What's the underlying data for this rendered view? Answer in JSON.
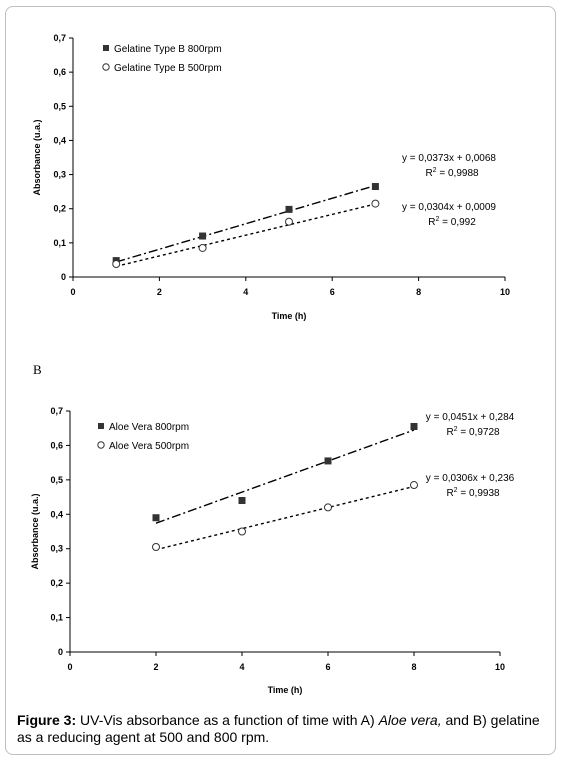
{
  "panel_letter": "B",
  "caption": {
    "label": "Figure 3:",
    "text_before": " UV-Vis absorbance as a function of time with A) ",
    "italic": "Aloe vera,",
    "text_after": " and B) gelatine as a reducing agent at 500 and 800 rpm."
  },
  "colors": {
    "filled_marker": "#333333",
    "open_marker": "#ffffff",
    "marker_stroke": "#333333"
  },
  "chart_data": [
    {
      "type": "scatter",
      "xlabel": "Time (h)",
      "ylabel": "Absorbance (u.a.)",
      "xlim": [
        0,
        10
      ],
      "ylim": [
        0,
        0.7
      ],
      "xticks": [
        0,
        2,
        4,
        6,
        8,
        10
      ],
      "yticks": [
        "0",
        "0,1",
        "0,2",
        "0,3",
        "0,4",
        "0,5",
        "0,6",
        "0,7"
      ],
      "legend_position": "top-left",
      "series": [
        {
          "name": "Gelatine Type B 800rpm",
          "marker": "filled-square",
          "x": [
            1,
            3,
            5,
            7
          ],
          "y": [
            0.048,
            0.12,
            0.198,
            0.265
          ],
          "trendline": {
            "slope": 0.0373,
            "intercept": 0.0068,
            "style": "dash-dot",
            "equation": "y = 0,0373x + 0,0068",
            "r2": "R2 = 0,9988"
          }
        },
        {
          "name": "Gelatine Type B 500rpm",
          "marker": "open-circle",
          "x": [
            1,
            3,
            5,
            7
          ],
          "y": [
            0.038,
            0.085,
            0.162,
            0.215
          ],
          "trendline": {
            "slope": 0.0304,
            "intercept": 0.0009,
            "style": "dotted",
            "equation": "y = 0,0304x + 0,0009",
            "r2": "R2 = 0,992"
          }
        }
      ]
    },
    {
      "type": "scatter",
      "xlabel": "Time (h)",
      "ylabel": "Absorbance (u.a.)",
      "xlim": [
        0,
        10
      ],
      "ylim": [
        0,
        0.7
      ],
      "xticks": [
        0,
        2,
        4,
        6,
        8,
        10
      ],
      "yticks": [
        "0",
        "0,1",
        "0,2",
        "0,3",
        "0,4",
        "0,5",
        "0,6",
        "0,7"
      ],
      "legend_position": "top-left",
      "series": [
        {
          "name": "Aloe Vera 800rpm",
          "marker": "filled-square",
          "x": [
            2,
            4,
            6,
            8
          ],
          "y": [
            0.39,
            0.44,
            0.555,
            0.655
          ],
          "trendline": {
            "slope": 0.0451,
            "intercept": 0.284,
            "style": "dash-dot",
            "equation": "y = 0,0451x + 0,284",
            "r2": "R2 = 0,9728"
          }
        },
        {
          "name": "Aloe Vera 500rpm",
          "marker": "open-circle",
          "x": [
            2,
            4,
            6,
            8
          ],
          "y": [
            0.305,
            0.35,
            0.42,
            0.485
          ],
          "trendline": {
            "slope": 0.0306,
            "intercept": 0.236,
            "style": "dotted",
            "equation": "y = 0,0306x + 0,236",
            "r2": "R2 = 0,9938"
          }
        }
      ]
    }
  ]
}
